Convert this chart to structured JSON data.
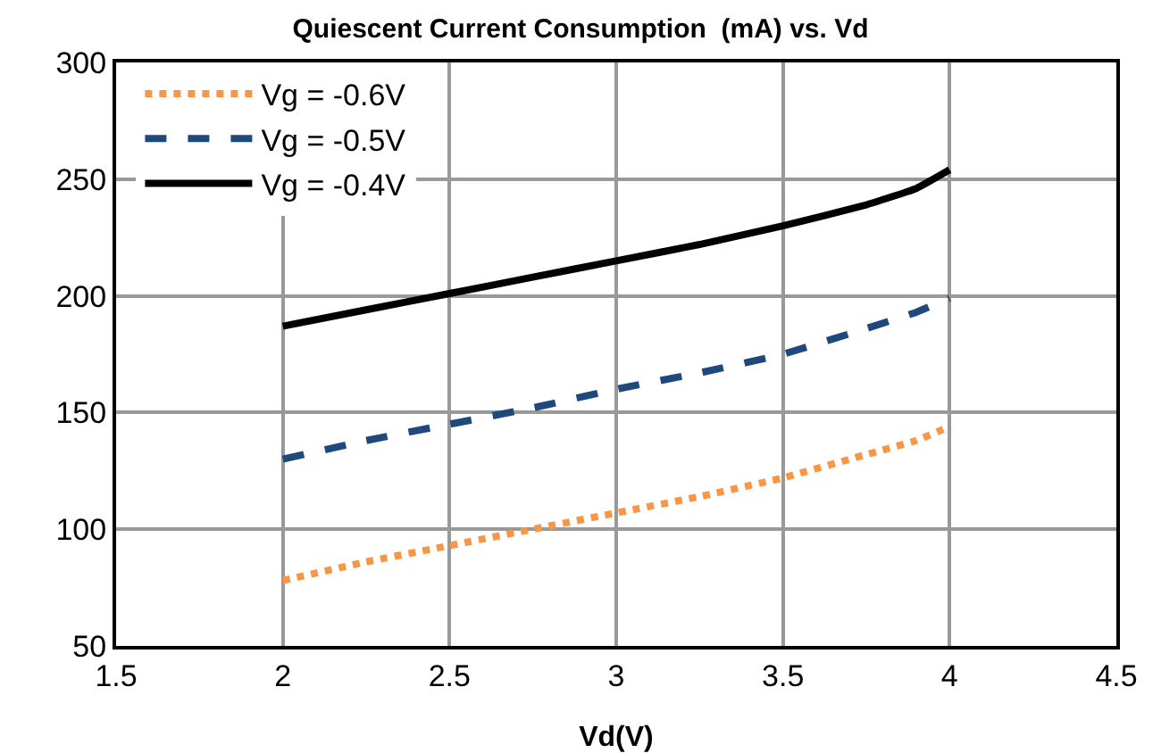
{
  "chart_data": {
    "type": "line",
    "title": "Quiescent Current Consumption  (mA) vs. Vd",
    "xlabel": "Vd(V)",
    "x": [
      2,
      2.25,
      2.5,
      2.75,
      3,
      3.25,
      3.5,
      3.75,
      3.9,
      4
    ],
    "series": [
      {
        "name": "Vg = -0.6V",
        "color": "#f79646",
        "line_style": "dotted",
        "values": [
          78,
          86,
          93,
          100,
          107,
          114,
          122,
          132,
          138,
          144
        ]
      },
      {
        "name": "Vg = -0.5V",
        "color": "#1f497d",
        "line_style": "dashed",
        "values": [
          130,
          138,
          145,
          152,
          160,
          167,
          175,
          186,
          193,
          199
        ]
      },
      {
        "name": "Vg = -0.4V",
        "color": "#000000",
        "line_style": "solid",
        "values": [
          187,
          194,
          201,
          208,
          215,
          222,
          230,
          239,
          246,
          254
        ]
      }
    ],
    "xlim": [
      1.5,
      4.5
    ],
    "xticks": [
      1.5,
      2,
      2.5,
      3,
      3.5,
      4,
      4.5
    ],
    "ylim": [
      50,
      300
    ],
    "yticks": [
      50,
      100,
      150,
      200,
      250,
      300
    ],
    "grid": true,
    "legend": "top left",
    "marker": "none"
  }
}
